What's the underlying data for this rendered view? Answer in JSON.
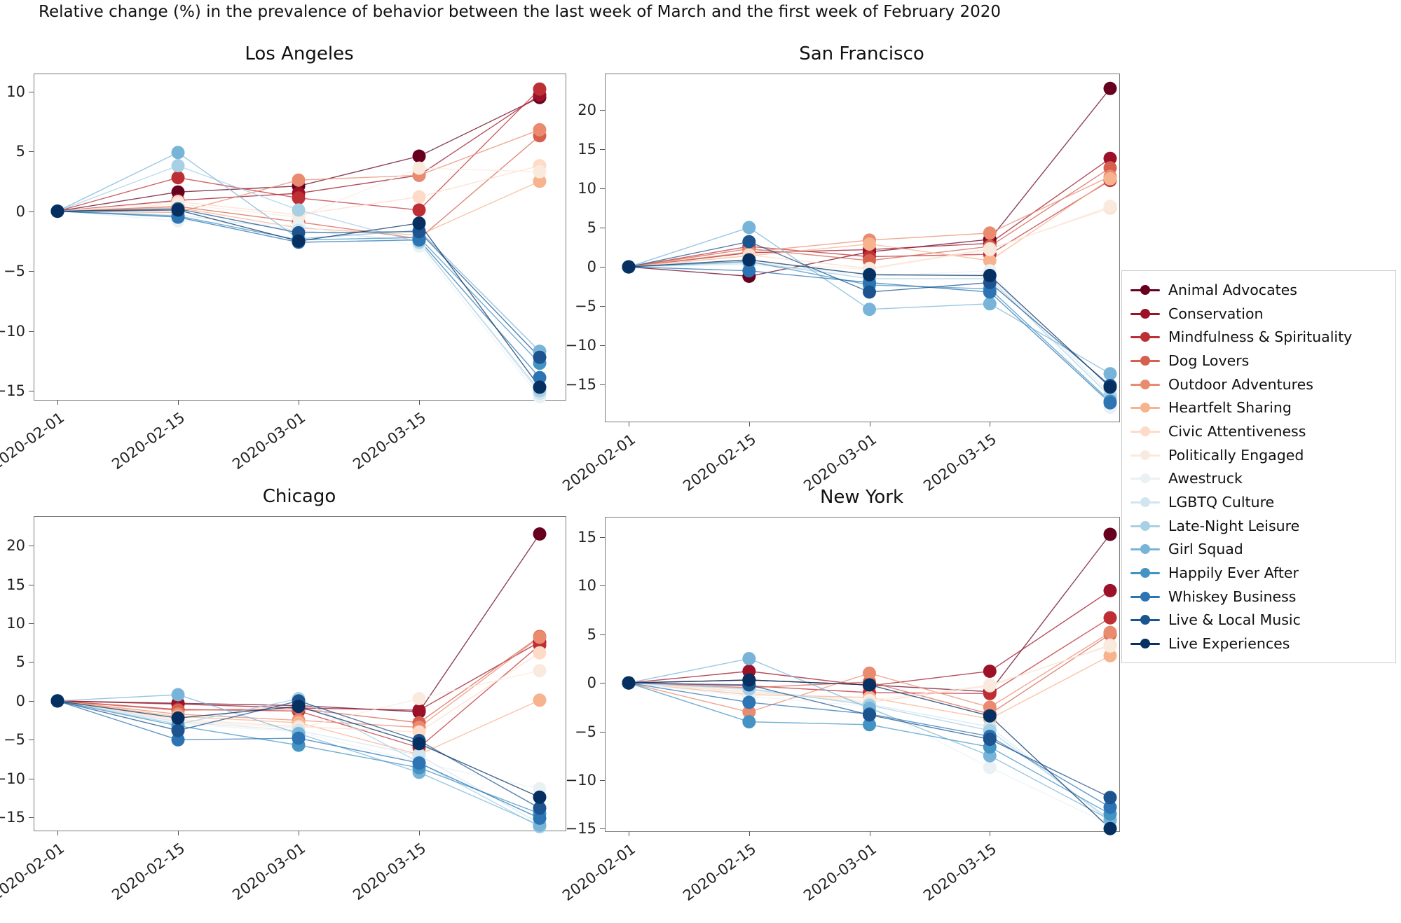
{
  "figure_title": "Relative change (%) in the prevalence of behavior between the last week of March and the first week of February 2020",
  "legend": {
    "items": [
      {
        "label": "Animal Advocates",
        "color": "#67001f"
      },
      {
        "label": "Conservation",
        "color": "#9c1127"
      },
      {
        "label": "Mindfulness & Spirituality",
        "color": "#be2f35"
      },
      {
        "label": "Dog Lovers",
        "color": "#d6604d"
      },
      {
        "label": "Outdoor Adventures",
        "color": "#ea8b6f"
      },
      {
        "label": "Heartfelt Sharing",
        "color": "#f7b28e"
      },
      {
        "label": "Civic Attentiveness",
        "color": "#fddbc7"
      },
      {
        "label": "Politically Engaged",
        "color": "#faeadd"
      },
      {
        "label": "Awestruck",
        "color": "#eaf1f5"
      },
      {
        "label": "LGBTQ Culture",
        "color": "#d1e5f0"
      },
      {
        "label": "Late-Night Leisure",
        "color": "#a7d0e4"
      },
      {
        "label": "Girl Squad",
        "color": "#78b4d8"
      },
      {
        "label": "Happily Ever After",
        "color": "#4393c3"
      },
      {
        "label": "Whiskey Business",
        "color": "#2c74b3"
      },
      {
        "label": "Live & Local Music",
        "color": "#1c548f"
      },
      {
        "label": "Live Experiences",
        "color": "#053061"
      }
    ]
  },
  "chart_data": {
    "type": "line",
    "x_tick_labels": [
      "2020-02-01",
      "2020-02-15",
      "2020-03-01",
      "2020-03-15"
    ],
    "x_points_per_series": 5,
    "grid": false,
    "legend_position": "right",
    "panels": [
      {
        "title": "Los Angeles",
        "yticks": [
          10,
          5,
          0,
          -5,
          -10,
          -15
        ],
        "ylim": [
          -15.7,
          11.5
        ]
      },
      {
        "title": "San Francisco",
        "yticks": [
          20,
          15,
          10,
          5,
          0,
          -5,
          -10,
          -15
        ],
        "ylim": [
          -19.6,
          24.6
        ]
      },
      {
        "title": "Chicago",
        "yticks": [
          20,
          15,
          10,
          5,
          0,
          -5,
          -10,
          -15
        ],
        "ylim": [
          -16.6,
          23.8
        ]
      },
      {
        "title": "New York",
        "yticks": [
          15,
          10,
          5,
          0,
          -5,
          -10,
          -15
        ],
        "ylim": [
          -15.2,
          17.1
        ]
      }
    ],
    "series": [
      {
        "name": "Animal Advocates",
        "color": "#67001f",
        "values": {
          "Los Angeles": [
            0,
            1.6,
            2.1,
            4.6,
            9.5
          ],
          "San Francisco": [
            0,
            -1.2,
            1.9,
            3.5,
            22.7
          ],
          "Chicago": [
            0,
            -0.3,
            -0.6,
            -1.4,
            21.5
          ],
          "New York": [
            0,
            0.3,
            -0.2,
            -0.9,
            15.3
          ]
        }
      },
      {
        "name": "Conservation",
        "color": "#9c1127",
        "values": {
          "Los Angeles": [
            0,
            0.9,
            1.5,
            3.0,
            9.7
          ],
          "San Francisco": [
            0,
            1.8,
            2.2,
            3.0,
            13.8
          ],
          "Chicago": [
            0,
            -0.4,
            -0.9,
            -1.2,
            7.6
          ],
          "New York": [
            0,
            1.2,
            -0.3,
            1.2,
            9.5
          ]
        }
      },
      {
        "name": "Mindfulness & Spirituality",
        "color": "#be2f35",
        "values": {
          "Los Angeles": [
            0,
            2.8,
            1.1,
            0.1,
            10.2
          ],
          "San Francisco": [
            0,
            2.6,
            1.3,
            1.6,
            11.0
          ],
          "Chicago": [
            0,
            -1.1,
            -1.3,
            -6.0,
            7.2
          ],
          "New York": [
            0,
            -0.3,
            -1.0,
            -1.1,
            6.7
          ]
        }
      },
      {
        "name": "Dog Lovers",
        "color": "#d6604d",
        "values": {
          "Los Angeles": [
            0,
            0.4,
            -0.9,
            -2.3,
            6.3
          ],
          "San Francisco": [
            0,
            2.3,
            0.8,
            2.6,
            12.6
          ],
          "Chicago": [
            0,
            -1.2,
            -1.0,
            -2.8,
            8.3
          ],
          "New York": [
            0,
            -0.5,
            0.1,
            -3.2,
            5.0
          ]
        }
      },
      {
        "name": "Outdoor Adventures",
        "color": "#ea8b6f",
        "values": {
          "Los Angeles": [
            0,
            -0.1,
            2.6,
            3.0,
            6.8
          ],
          "San Francisco": [
            0,
            1.9,
            3.4,
            4.3,
            11.5
          ],
          "Chicago": [
            0,
            -1.7,
            -2.5,
            -3.4,
            8.2
          ],
          "New York": [
            0,
            -3.0,
            1.0,
            -2.5,
            5.2
          ]
        }
      },
      {
        "name": "Heartfelt Sharing",
        "color": "#f7b28e",
        "values": {
          "Los Angeles": [
            0,
            0.3,
            -1.4,
            -2.0,
            2.5
          ],
          "San Francisco": [
            0,
            1.4,
            2.9,
            0.8,
            11.2
          ],
          "Chicago": [
            0,
            -2.0,
            -2.8,
            -6.9,
            0.1
          ],
          "New York": [
            0,
            -1.2,
            -1.5,
            -3.7,
            2.8
          ]
        }
      },
      {
        "name": "Civic Attentiveness",
        "color": "#fddbc7",
        "values": {
          "Los Angeles": [
            0,
            0.8,
            -0.3,
            1.2,
            3.8
          ],
          "San Francisco": [
            0,
            1.5,
            -0.2,
            2.3,
            7.5
          ],
          "Chicago": [
            0,
            -2.4,
            -3.3,
            -4.0,
            6.2
          ],
          "New York": [
            0,
            -0.9,
            -2.0,
            -0.3,
            3.9
          ]
        }
      },
      {
        "name": "Politically Engaged",
        "color": "#faeadd",
        "values": {
          "Los Angeles": [
            0,
            0.6,
            -0.5,
            3.6,
            3.3
          ],
          "San Francisco": [
            0,
            0.5,
            -0.3,
            2.2,
            7.7
          ],
          "Chicago": [
            0,
            -2.6,
            -3.5,
            0.3,
            3.9
          ],
          "New York": [
            0,
            -1.0,
            -1.8,
            -0.2,
            3.8
          ]
        }
      },
      {
        "name": "Awestruck",
        "color": "#eaf1f5",
        "values": {
          "Los Angeles": [
            0,
            -0.8,
            -1.2,
            -2.9,
            -15.5
          ],
          "San Francisco": [
            0,
            0.3,
            -1.2,
            -0.5,
            -17.9
          ],
          "Chicago": [
            0,
            -2.9,
            -4.0,
            -7.9,
            -11.3
          ],
          "New York": [
            0,
            -1.4,
            -2.4,
            -8.7,
            -14.6
          ]
        }
      },
      {
        "name": "LGBTQ Culture",
        "color": "#d1e5f0",
        "values": {
          "Los Angeles": [
            0,
            -0.3,
            -1.6,
            -2.5,
            -15.2
          ],
          "San Francisco": [
            0,
            0.4,
            -0.9,
            -1.2,
            -16.1
          ],
          "Chicago": [
            0,
            -2.7,
            -3.8,
            -7.0,
            -15.8
          ],
          "New York": [
            0,
            -0.7,
            -2.2,
            -4.5,
            -14.3
          ]
        }
      },
      {
        "name": "Late-Night Leisure",
        "color": "#a7d0e4",
        "values": {
          "Los Angeles": [
            0,
            3.8,
            0.1,
            -2.6,
            -15.0
          ],
          "San Francisco": [
            0,
            0.6,
            -1.5,
            -1.5,
            -16.5
          ],
          "Chicago": [
            0,
            -3.0,
            0.3,
            -7.9,
            -16.2
          ],
          "New York": [
            0,
            -0.6,
            -2.3,
            -4.9,
            -14.1
          ]
        }
      },
      {
        "name": "Girl Squad",
        "color": "#78b4d8",
        "values": {
          "Los Angeles": [
            0,
            4.9,
            -2.3,
            -1.6,
            -11.7
          ],
          "San Francisco": [
            0,
            5.0,
            -5.4,
            -4.7,
            -13.6
          ],
          "Chicago": [
            0,
            0.8,
            -4.2,
            -9.2,
            -16.0
          ],
          "New York": [
            0,
            2.5,
            -2.6,
            -7.5,
            -14.1
          ]
        }
      },
      {
        "name": "Happily Ever After",
        "color": "#4393c3",
        "values": {
          "Los Angeles": [
            0,
            -0.4,
            -2.4,
            -2.2,
            -12.7
          ],
          "San Francisco": [
            0,
            0.7,
            -2.3,
            -2.8,
            -17.1
          ],
          "Chicago": [
            0,
            -3.2,
            -5.7,
            -8.6,
            -14.5
          ],
          "New York": [
            0,
            -4.0,
            -4.3,
            -6.6,
            -13.5
          ]
        }
      },
      {
        "name": "Whiskey Business",
        "color": "#2c74b3",
        "values": {
          "Los Angeles": [
            0,
            -0.5,
            -2.6,
            -2.4,
            -13.9
          ],
          "San Francisco": [
            0,
            -0.5,
            -2.0,
            -3.2,
            -17.3
          ],
          "Chicago": [
            0,
            -5.0,
            -4.8,
            -8.0,
            -15.1
          ],
          "New York": [
            0,
            -2.0,
            -3.2,
            -5.5,
            -12.8
          ]
        }
      },
      {
        "name": "Live & Local Music",
        "color": "#1c548f",
        "values": {
          "Los Angeles": [
            0,
            0.2,
            -1.8,
            -1.7,
            -12.2
          ],
          "San Francisco": [
            0,
            3.2,
            -3.2,
            -2.0,
            -15.1
          ],
          "Chicago": [
            0,
            -3.8,
            0.0,
            -5.1,
            -13.8
          ],
          "New York": [
            0,
            -0.2,
            -3.3,
            -5.8,
            -11.8
          ]
        }
      },
      {
        "name": "Live Experiences",
        "color": "#053061",
        "values": {
          "Los Angeles": [
            0,
            0.1,
            -2.5,
            -1.0,
            -14.7
          ],
          "San Francisco": [
            0,
            0.9,
            -1.0,
            -1.1,
            -15.3
          ],
          "Chicago": [
            0,
            -2.2,
            -0.7,
            -5.5,
            -12.4
          ],
          "New York": [
            0,
            0.3,
            -0.2,
            -3.4,
            -15.0
          ]
        }
      }
    ]
  }
}
